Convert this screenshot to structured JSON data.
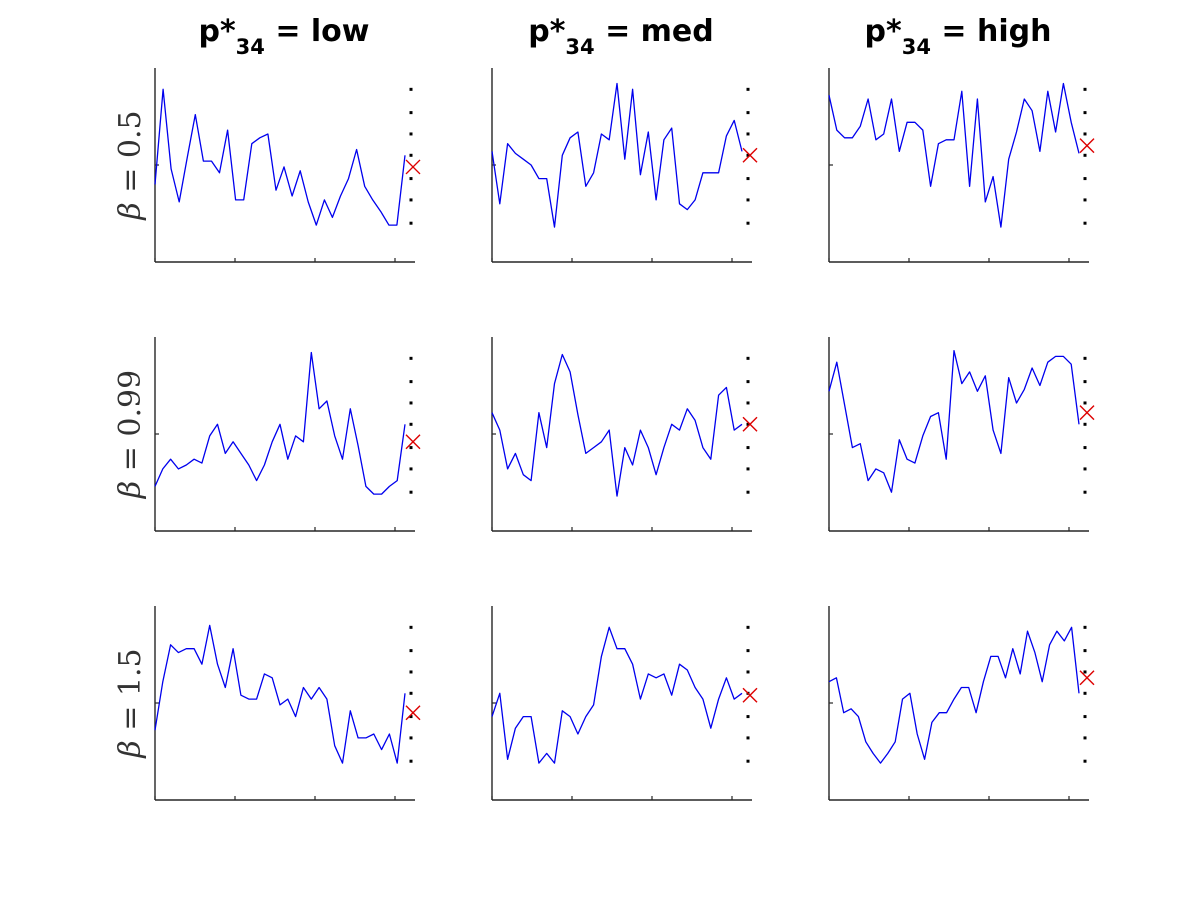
{
  "figure": {
    "columns": [
      {
        "prefix": "p*",
        "sub": "34",
        "suffix": " = low"
      },
      {
        "prefix": "p*",
        "sub": "34",
        "suffix": " = med"
      },
      {
        "prefix": "p*",
        "sub": "34",
        "suffix": " = high"
      }
    ],
    "rows": [
      {
        "symbol": "β",
        "text": " = 0.5"
      },
      {
        "symbol": "β",
        "text": " = 0.99"
      },
      {
        "symbol": "β",
        "text": " = 1.5"
      }
    ],
    "colors": {
      "series": "#0000ee",
      "marker": "#dd0000",
      "dots": "#000000",
      "axis": "#262626"
    },
    "marker_icon": "x-cross-icon"
  },
  "chart_data": [
    {
      "type": "line",
      "row": 0,
      "col": 0,
      "ylim": [
        0,
        1
      ],
      "x_ticks": [
        0,
        10,
        20,
        30
      ],
      "values": [
        0.4,
        0.89,
        0.48,
        0.31,
        0.54,
        0.76,
        0.52,
        0.52,
        0.46,
        0.68,
        0.32,
        0.32,
        0.61,
        0.64,
        0.66,
        0.37,
        0.49,
        0.34,
        0.47,
        0.31,
        0.19,
        0.32,
        0.23,
        0.34,
        0.43,
        0.58,
        0.39,
        0.32,
        0.26,
        0.19,
        0.19,
        0.55
      ],
      "marker": 0.49,
      "dots": [
        0.89,
        0.77,
        0.66,
        0.55,
        0.43,
        0.32,
        0.2
      ]
    },
    {
      "type": "line",
      "row": 0,
      "col": 1,
      "ylim": [
        0,
        1
      ],
      "x_ticks": [
        0,
        10,
        20,
        30
      ],
      "values": [
        0.57,
        0.3,
        0.61,
        0.56,
        0.53,
        0.5,
        0.43,
        0.43,
        0.18,
        0.55,
        0.64,
        0.67,
        0.39,
        0.46,
        0.66,
        0.63,
        0.92,
        0.53,
        0.89,
        0.45,
        0.67,
        0.32,
        0.63,
        0.69,
        0.3,
        0.27,
        0.32,
        0.46,
        0.46,
        0.46,
        0.65,
        0.73,
        0.57
      ],
      "marker": 0.55,
      "dots": [
        0.89,
        0.77,
        0.66,
        0.55,
        0.43,
        0.32,
        0.2
      ]
    },
    {
      "type": "line",
      "row": 0,
      "col": 2,
      "ylim": [
        0,
        1
      ],
      "x_ticks": [
        0,
        10,
        20,
        30
      ],
      "values": [
        0.86,
        0.68,
        0.64,
        0.64,
        0.7,
        0.84,
        0.63,
        0.66,
        0.84,
        0.57,
        0.72,
        0.72,
        0.68,
        0.39,
        0.61,
        0.63,
        0.63,
        0.88,
        0.39,
        0.84,
        0.31,
        0.44,
        0.18,
        0.53,
        0.67,
        0.84,
        0.78,
        0.57,
        0.88,
        0.67,
        0.92,
        0.72,
        0.56
      ],
      "marker": 0.6,
      "dots": [
        0.89,
        0.77,
        0.66,
        0.55,
        0.43,
        0.32,
        0.2
      ]
    },
    {
      "type": "line",
      "row": 1,
      "col": 0,
      "ylim": [
        0,
        1
      ],
      "x_ticks": [
        0,
        10,
        20,
        30
      ],
      "values": [
        0.23,
        0.32,
        0.37,
        0.32,
        0.34,
        0.37,
        0.35,
        0.49,
        0.55,
        0.4,
        0.46,
        0.4,
        0.34,
        0.26,
        0.34,
        0.46,
        0.55,
        0.37,
        0.49,
        0.46,
        0.92,
        0.63,
        0.67,
        0.49,
        0.37,
        0.63,
        0.44,
        0.23,
        0.19,
        0.19,
        0.23,
        0.26,
        0.55
      ],
      "marker": 0.46,
      "dots": [
        0.89,
        0.77,
        0.66,
        0.55,
        0.43,
        0.32,
        0.2
      ]
    },
    {
      "type": "line",
      "row": 1,
      "col": 1,
      "ylim": [
        0,
        1
      ],
      "x_ticks": [
        0,
        10,
        20,
        30
      ],
      "values": [
        0.61,
        0.52,
        0.32,
        0.4,
        0.29,
        0.26,
        0.61,
        0.43,
        0.76,
        0.91,
        0.82,
        0.6,
        0.4,
        0.43,
        0.46,
        0.52,
        0.18,
        0.43,
        0.34,
        0.52,
        0.43,
        0.29,
        0.43,
        0.55,
        0.52,
        0.63,
        0.57,
        0.43,
        0.37,
        0.7,
        0.74,
        0.52,
        0.55
      ],
      "marker": 0.55,
      "dots": [
        0.89,
        0.77,
        0.66,
        0.55,
        0.43,
        0.32,
        0.2
      ]
    },
    {
      "type": "line",
      "row": 1,
      "col": 2,
      "ylim": [
        0,
        1
      ],
      "x_ticks": [
        0,
        10,
        20,
        30
      ],
      "values": [
        0.72,
        0.87,
        0.65,
        0.43,
        0.45,
        0.26,
        0.32,
        0.3,
        0.2,
        0.47,
        0.37,
        0.35,
        0.49,
        0.59,
        0.61,
        0.37,
        0.93,
        0.76,
        0.82,
        0.72,
        0.8,
        0.52,
        0.4,
        0.79,
        0.66,
        0.73,
        0.84,
        0.75,
        0.87,
        0.9,
        0.9,
        0.86,
        0.55
      ],
      "marker": 0.61,
      "dots": [
        0.89,
        0.77,
        0.66,
        0.55,
        0.43,
        0.32,
        0.2
      ]
    },
    {
      "type": "line",
      "row": 2,
      "col": 0,
      "ylim": [
        0,
        1
      ],
      "x_ticks": [
        0,
        10,
        20,
        30
      ],
      "values": [
        0.36,
        0.61,
        0.8,
        0.76,
        0.78,
        0.78,
        0.7,
        0.9,
        0.7,
        0.58,
        0.78,
        0.54,
        0.52,
        0.52,
        0.65,
        0.63,
        0.49,
        0.52,
        0.43,
        0.58,
        0.52,
        0.58,
        0.52,
        0.28,
        0.19,
        0.46,
        0.32,
        0.32,
        0.34,
        0.26,
        0.34,
        0.19,
        0.55
      ],
      "marker": 0.45,
      "dots": [
        0.89,
        0.77,
        0.66,
        0.55,
        0.43,
        0.32,
        0.2
      ]
    },
    {
      "type": "line",
      "row": 2,
      "col": 1,
      "ylim": [
        0,
        1
      ],
      "x_ticks": [
        0,
        10,
        20,
        30
      ],
      "values": [
        0.43,
        0.55,
        0.21,
        0.37,
        0.43,
        0.43,
        0.19,
        0.24,
        0.19,
        0.46,
        0.43,
        0.34,
        0.43,
        0.49,
        0.74,
        0.89,
        0.78,
        0.78,
        0.7,
        0.52,
        0.65,
        0.63,
        0.65,
        0.54,
        0.7,
        0.67,
        0.58,
        0.52,
        0.37,
        0.52,
        0.63,
        0.52,
        0.55
      ],
      "marker": 0.54,
      "dots": [
        0.89,
        0.77,
        0.66,
        0.55,
        0.43,
        0.32,
        0.2
      ]
    },
    {
      "type": "line",
      "row": 2,
      "col": 2,
      "ylim": [
        0,
        1
      ],
      "x_ticks": [
        0,
        10,
        20,
        30
      ],
      "values": [
        0.61,
        0.63,
        0.45,
        0.47,
        0.43,
        0.3,
        0.24,
        0.19,
        0.24,
        0.3,
        0.52,
        0.55,
        0.34,
        0.21,
        0.4,
        0.45,
        0.45,
        0.52,
        0.58,
        0.58,
        0.45,
        0.61,
        0.74,
        0.74,
        0.63,
        0.78,
        0.65,
        0.87,
        0.76,
        0.61,
        0.8,
        0.87,
        0.82,
        0.89,
        0.55
      ],
      "marker": 0.63,
      "dots": [
        0.89,
        0.77,
        0.66,
        0.55,
        0.43,
        0.32,
        0.2
      ]
    }
  ]
}
